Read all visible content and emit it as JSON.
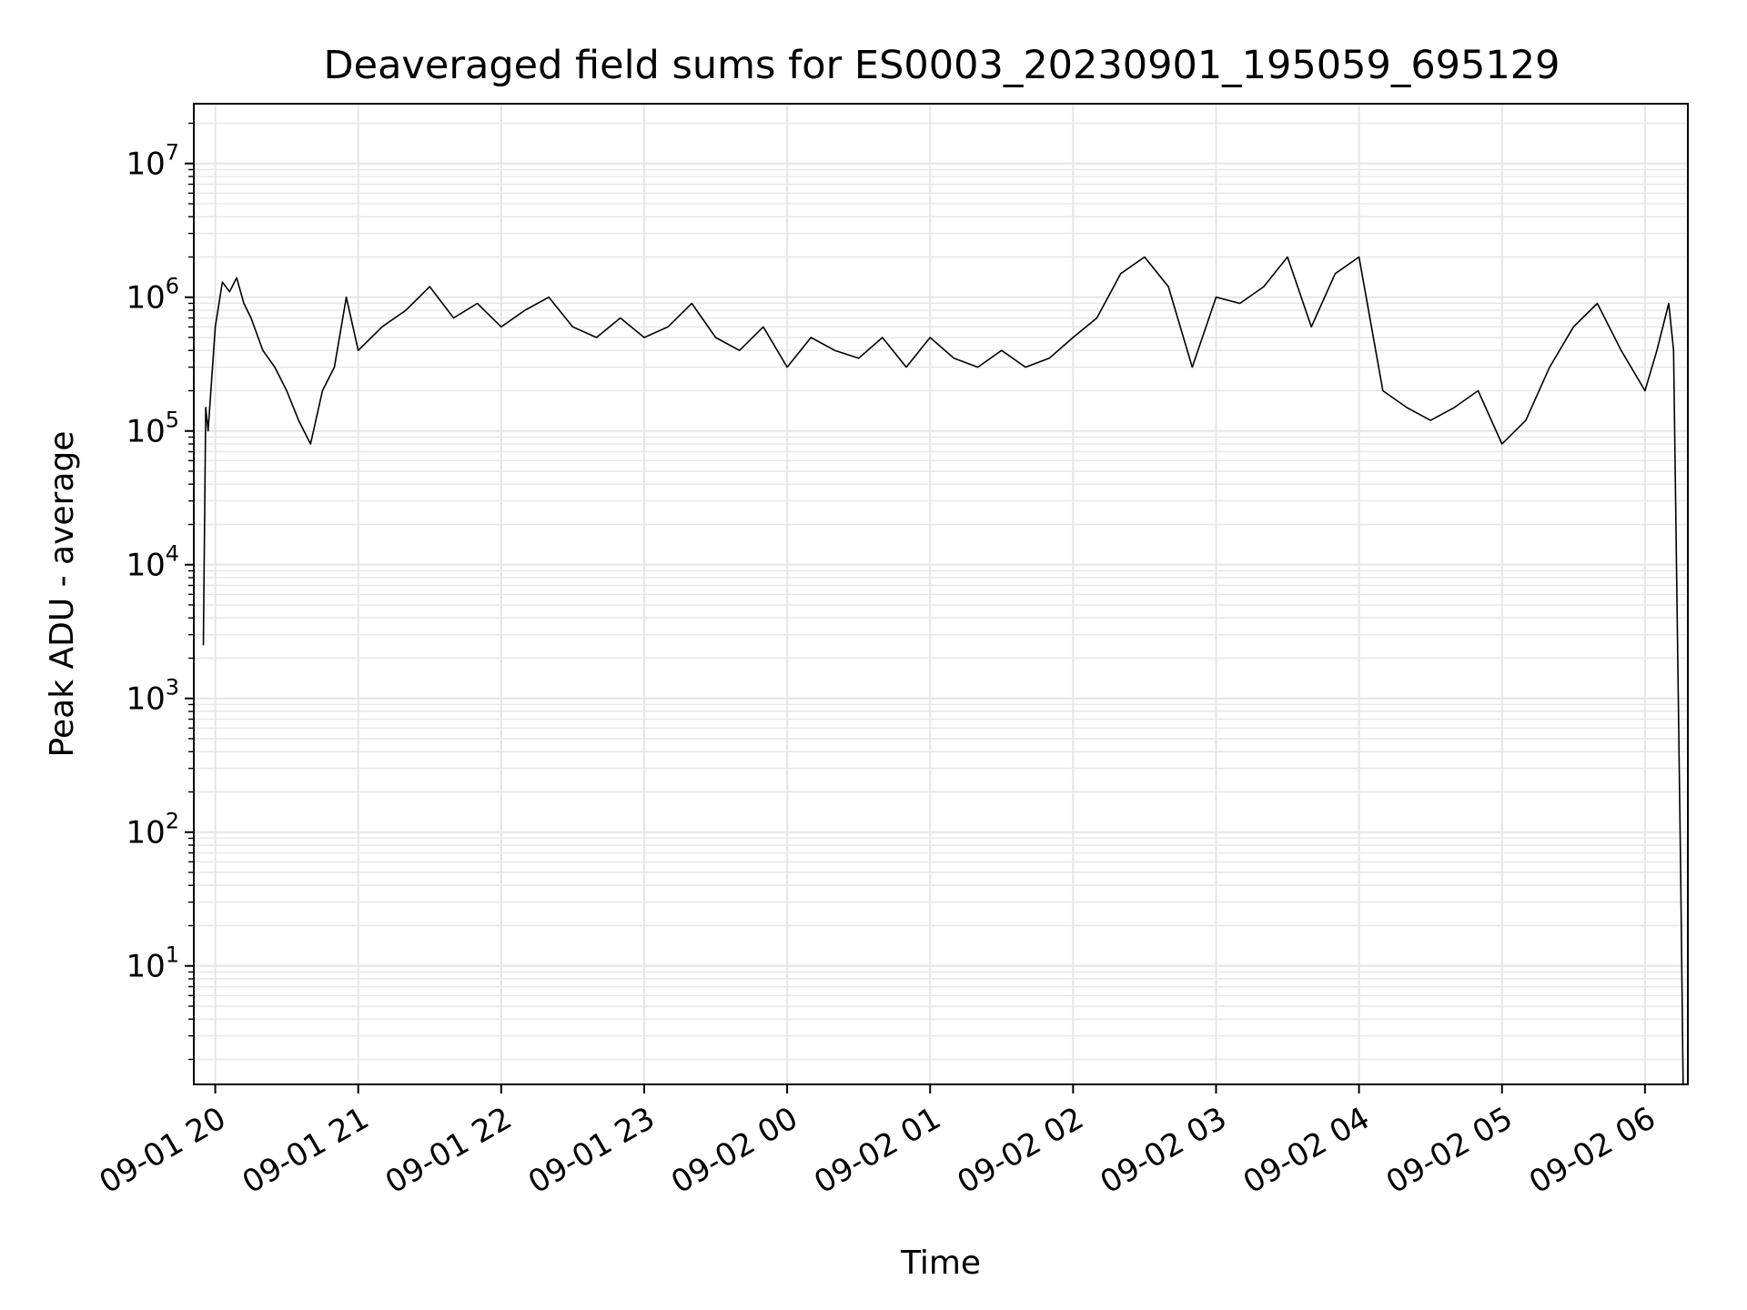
{
  "chart_data": {
    "type": "line",
    "title": "Deaveraged field sums for ES0003_20230901_195059_695129",
    "xlabel": "Time",
    "ylabel": "Peak ADU - average",
    "yscale": "log",
    "grid": true,
    "line_color": "#000000",
    "grid_color": "#e6e6e6",
    "xlim": [
      "2023-09-01 19:51",
      "2023-09-02 06:18"
    ],
    "ylim": [
      1.3,
      28000000
    ],
    "x_ticks": [
      {
        "label": "09-01 20",
        "time": "2023-09-01 20:00"
      },
      {
        "label": "09-01 21",
        "time": "2023-09-01 21:00"
      },
      {
        "label": "09-01 22",
        "time": "2023-09-01 22:00"
      },
      {
        "label": "09-01 23",
        "time": "2023-09-01 23:00"
      },
      {
        "label": "09-02 00",
        "time": "2023-09-02 00:00"
      },
      {
        "label": "09-02 01",
        "time": "2023-09-02 01:00"
      },
      {
        "label": "09-02 02",
        "time": "2023-09-02 02:00"
      },
      {
        "label": "09-02 03",
        "time": "2023-09-02 03:00"
      },
      {
        "label": "09-02 04",
        "time": "2023-09-02 04:00"
      },
      {
        "label": "09-02 05",
        "time": "2023-09-02 05:00"
      },
      {
        "label": "09-02 06",
        "time": "2023-09-02 06:00"
      }
    ],
    "y_ticks": [
      {
        "base": "10",
        "exp": "1",
        "value": 10
      },
      {
        "base": "10",
        "exp": "2",
        "value": 100
      },
      {
        "base": "10",
        "exp": "3",
        "value": 1000
      },
      {
        "base": "10",
        "exp": "4",
        "value": 10000
      },
      {
        "base": "10",
        "exp": "5",
        "value": 100000
      },
      {
        "base": "10",
        "exp": "6",
        "value": 1000000
      },
      {
        "base": "10",
        "exp": "7",
        "value": 10000000
      }
    ],
    "series": [
      {
        "x": [
          "2023-09-01 19:55",
          "2023-09-01 19:56",
          "2023-09-01 19:57",
          "2023-09-01 19:58",
          "2023-09-01 20:00",
          "2023-09-01 20:03",
          "2023-09-01 20:06",
          "2023-09-01 20:09",
          "2023-09-01 20:12",
          "2023-09-01 20:15",
          "2023-09-01 20:20",
          "2023-09-01 20:25",
          "2023-09-01 20:30",
          "2023-09-01 20:35",
          "2023-09-01 20:40",
          "2023-09-01 20:45",
          "2023-09-01 20:50",
          "2023-09-01 20:55",
          "2023-09-01 21:00",
          "2023-09-01 21:10",
          "2023-09-01 21:20",
          "2023-09-01 21:30",
          "2023-09-01 21:40",
          "2023-09-01 21:50",
          "2023-09-01 22:00",
          "2023-09-01 22:10",
          "2023-09-01 22:20",
          "2023-09-01 22:30",
          "2023-09-01 22:40",
          "2023-09-01 22:50",
          "2023-09-01 23:00",
          "2023-09-01 23:10",
          "2023-09-01 23:20",
          "2023-09-01 23:30",
          "2023-09-01 23:40",
          "2023-09-01 23:50",
          "2023-09-02 00:00",
          "2023-09-02 00:10",
          "2023-09-02 00:20",
          "2023-09-02 00:30",
          "2023-09-02 00:40",
          "2023-09-02 00:50",
          "2023-09-02 01:00",
          "2023-09-02 01:10",
          "2023-09-02 01:20",
          "2023-09-02 01:30",
          "2023-09-02 01:40",
          "2023-09-02 01:50",
          "2023-09-02 02:00",
          "2023-09-02 02:10",
          "2023-09-02 02:20",
          "2023-09-02 02:30",
          "2023-09-02 02:40",
          "2023-09-02 02:50",
          "2023-09-02 03:00",
          "2023-09-02 03:10",
          "2023-09-02 03:20",
          "2023-09-02 03:30",
          "2023-09-02 03:40",
          "2023-09-02 03:50",
          "2023-09-02 04:00",
          "2023-09-02 04:10",
          "2023-09-02 04:20",
          "2023-09-02 04:30",
          "2023-09-02 04:40",
          "2023-09-02 04:50",
          "2023-09-02 05:00",
          "2023-09-02 05:10",
          "2023-09-02 05:20",
          "2023-09-02 05:30",
          "2023-09-02 05:40",
          "2023-09-02 05:50",
          "2023-09-02 06:00",
          "2023-09-02 06:05",
          "2023-09-02 06:10",
          "2023-09-02 06:12",
          "2023-09-02 06:14",
          "2023-09-02 06:15",
          "2023-09-02 06:16"
        ],
        "y": [
          2500,
          150000,
          100000,
          180000,
          600000,
          1300000,
          1100000,
          1400000,
          900000,
          700000,
          400000,
          300000,
          200000,
          120000,
          80000,
          200000,
          300000,
          1000000,
          400000,
          600000,
          800000,
          1200000,
          700000,
          900000,
          600000,
          800000,
          1000000,
          600000,
          500000,
          700000,
          500000,
          600000,
          900000,
          500000,
          400000,
          600000,
          300000,
          500000,
          400000,
          350000,
          500000,
          300000,
          500000,
          350000,
          300000,
          400000,
          300000,
          350000,
          500000,
          700000,
          1500000,
          2000000,
          1200000,
          300000,
          1000000,
          900000,
          1200000,
          2000000,
          600000,
          1500000,
          2000000,
          200000,
          150000,
          120000,
          150000,
          200000,
          80000,
          120000,
          300000,
          600000,
          900000,
          400000,
          200000,
          400000,
          900000,
          400000,
          1000,
          50,
          1.3
        ]
      }
    ]
  }
}
